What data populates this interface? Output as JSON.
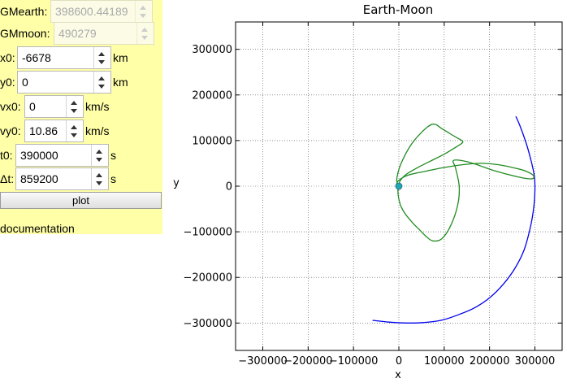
{
  "form": {
    "gmearth": {
      "label": "GMearth:",
      "value": "398600.44189",
      "unit": ""
    },
    "gmmoon": {
      "label": "GMmoon:",
      "value": "490279",
      "unit": ""
    },
    "x0": {
      "label": "x0:",
      "value": "-6678",
      "unit": "km"
    },
    "y0": {
      "label": "y0:",
      "value": "0",
      "unit": "km"
    },
    "vx0": {
      "label": "vx0:",
      "value": "0",
      "unit": "km/s"
    },
    "vy0": {
      "label": "vy0:",
      "value": "10.86",
      "unit": "km/s"
    },
    "t0": {
      "label": "t0:",
      "value": "390000",
      "unit": "s"
    },
    "dt": {
      "label": "Δt:",
      "value": "859200",
      "unit": "s"
    },
    "plot_label": "plot",
    "documentation_label": "documentation"
  },
  "colors": {
    "panel_bg": "#ffffa8",
    "moon_path": "#0000ee",
    "spacecraft_path": "#228b22",
    "earth": "#1fa7b8"
  },
  "chart_data": {
    "type": "line",
    "title": "Earth-Moon",
    "xlabel": "x",
    "ylabel": "y",
    "xlim": [
      -360000,
      360000
    ],
    "ylim": [
      -360000,
      360000
    ],
    "xticks": [
      -300000,
      -200000,
      -100000,
      0,
      100000,
      200000,
      300000
    ],
    "yticks": [
      -300000,
      -200000,
      -100000,
      0,
      100000,
      200000,
      300000
    ],
    "xtick_labels": [
      "−300000",
      "−200000",
      "−100000",
      "0",
      "100000",
      "200000",
      "300000"
    ],
    "ytick_labels": [
      "−300000",
      "−200000",
      "−100000",
      "0",
      "100000",
      "200000",
      "300000"
    ],
    "grid": true,
    "series": [
      {
        "color": "#0000ee",
        "x": [
          258000,
          268000,
          282000,
          293000,
          299000,
          300000,
          297000,
          290000,
          276000,
          256000,
          231000,
          201000,
          168000,
          131000,
          93000,
          54000,
          15000,
          -22000,
          -58000
        ],
        "y": [
          153000,
          130000,
          90000,
          50000,
          20000,
          -10000,
          -50000,
          -90000,
          -140000,
          -180000,
          -214000,
          -244000,
          -266000,
          -282000,
          -294000,
          -299000,
          -300000,
          -298000,
          -294000
        ]
      },
      {
        "color": "#228b22",
        "x": [
          -6000,
          -1000,
          20000,
          60000,
          100000,
          140000,
          180000,
          220000,
          255000,
          280000,
          297000,
          292000,
          260000,
          210000,
          170000,
          140000,
          120000,
          125000,
          133000,
          130000,
          115000,
          95000,
          75000,
          60000,
          45000,
          30000,
          15000,
          5000,
          0,
          -2000,
          2000,
          15000,
          40000,
          70000,
          100000,
          125000,
          140000,
          139000,
          130000,
          113000,
          95000,
          75000,
          50000,
          25000,
          5000,
          -4000,
          -3000,
          6000
        ],
        "y": [
          0,
          12000,
          24000,
          33000,
          41000,
          47000,
          50000,
          47000,
          40000,
          33000,
          23000,
          16000,
          21000,
          34000,
          48000,
          56000,
          56000,
          40000,
          0,
          -40000,
          -85000,
          -115000,
          -120000,
          -110000,
          -95000,
          -80000,
          -62000,
          -45000,
          -28000,
          -10000,
          10000,
          25000,
          40000,
          55000,
          70000,
          85000,
          95000,
          100000,
          105000,
          115000,
          126000,
          136000,
          118000,
          88000,
          50000,
          20000,
          5000,
          0
        ]
      }
    ],
    "points": [
      {
        "name": "Earth",
        "x": 0,
        "y": 0,
        "color": "#1fa7b8"
      }
    ]
  }
}
